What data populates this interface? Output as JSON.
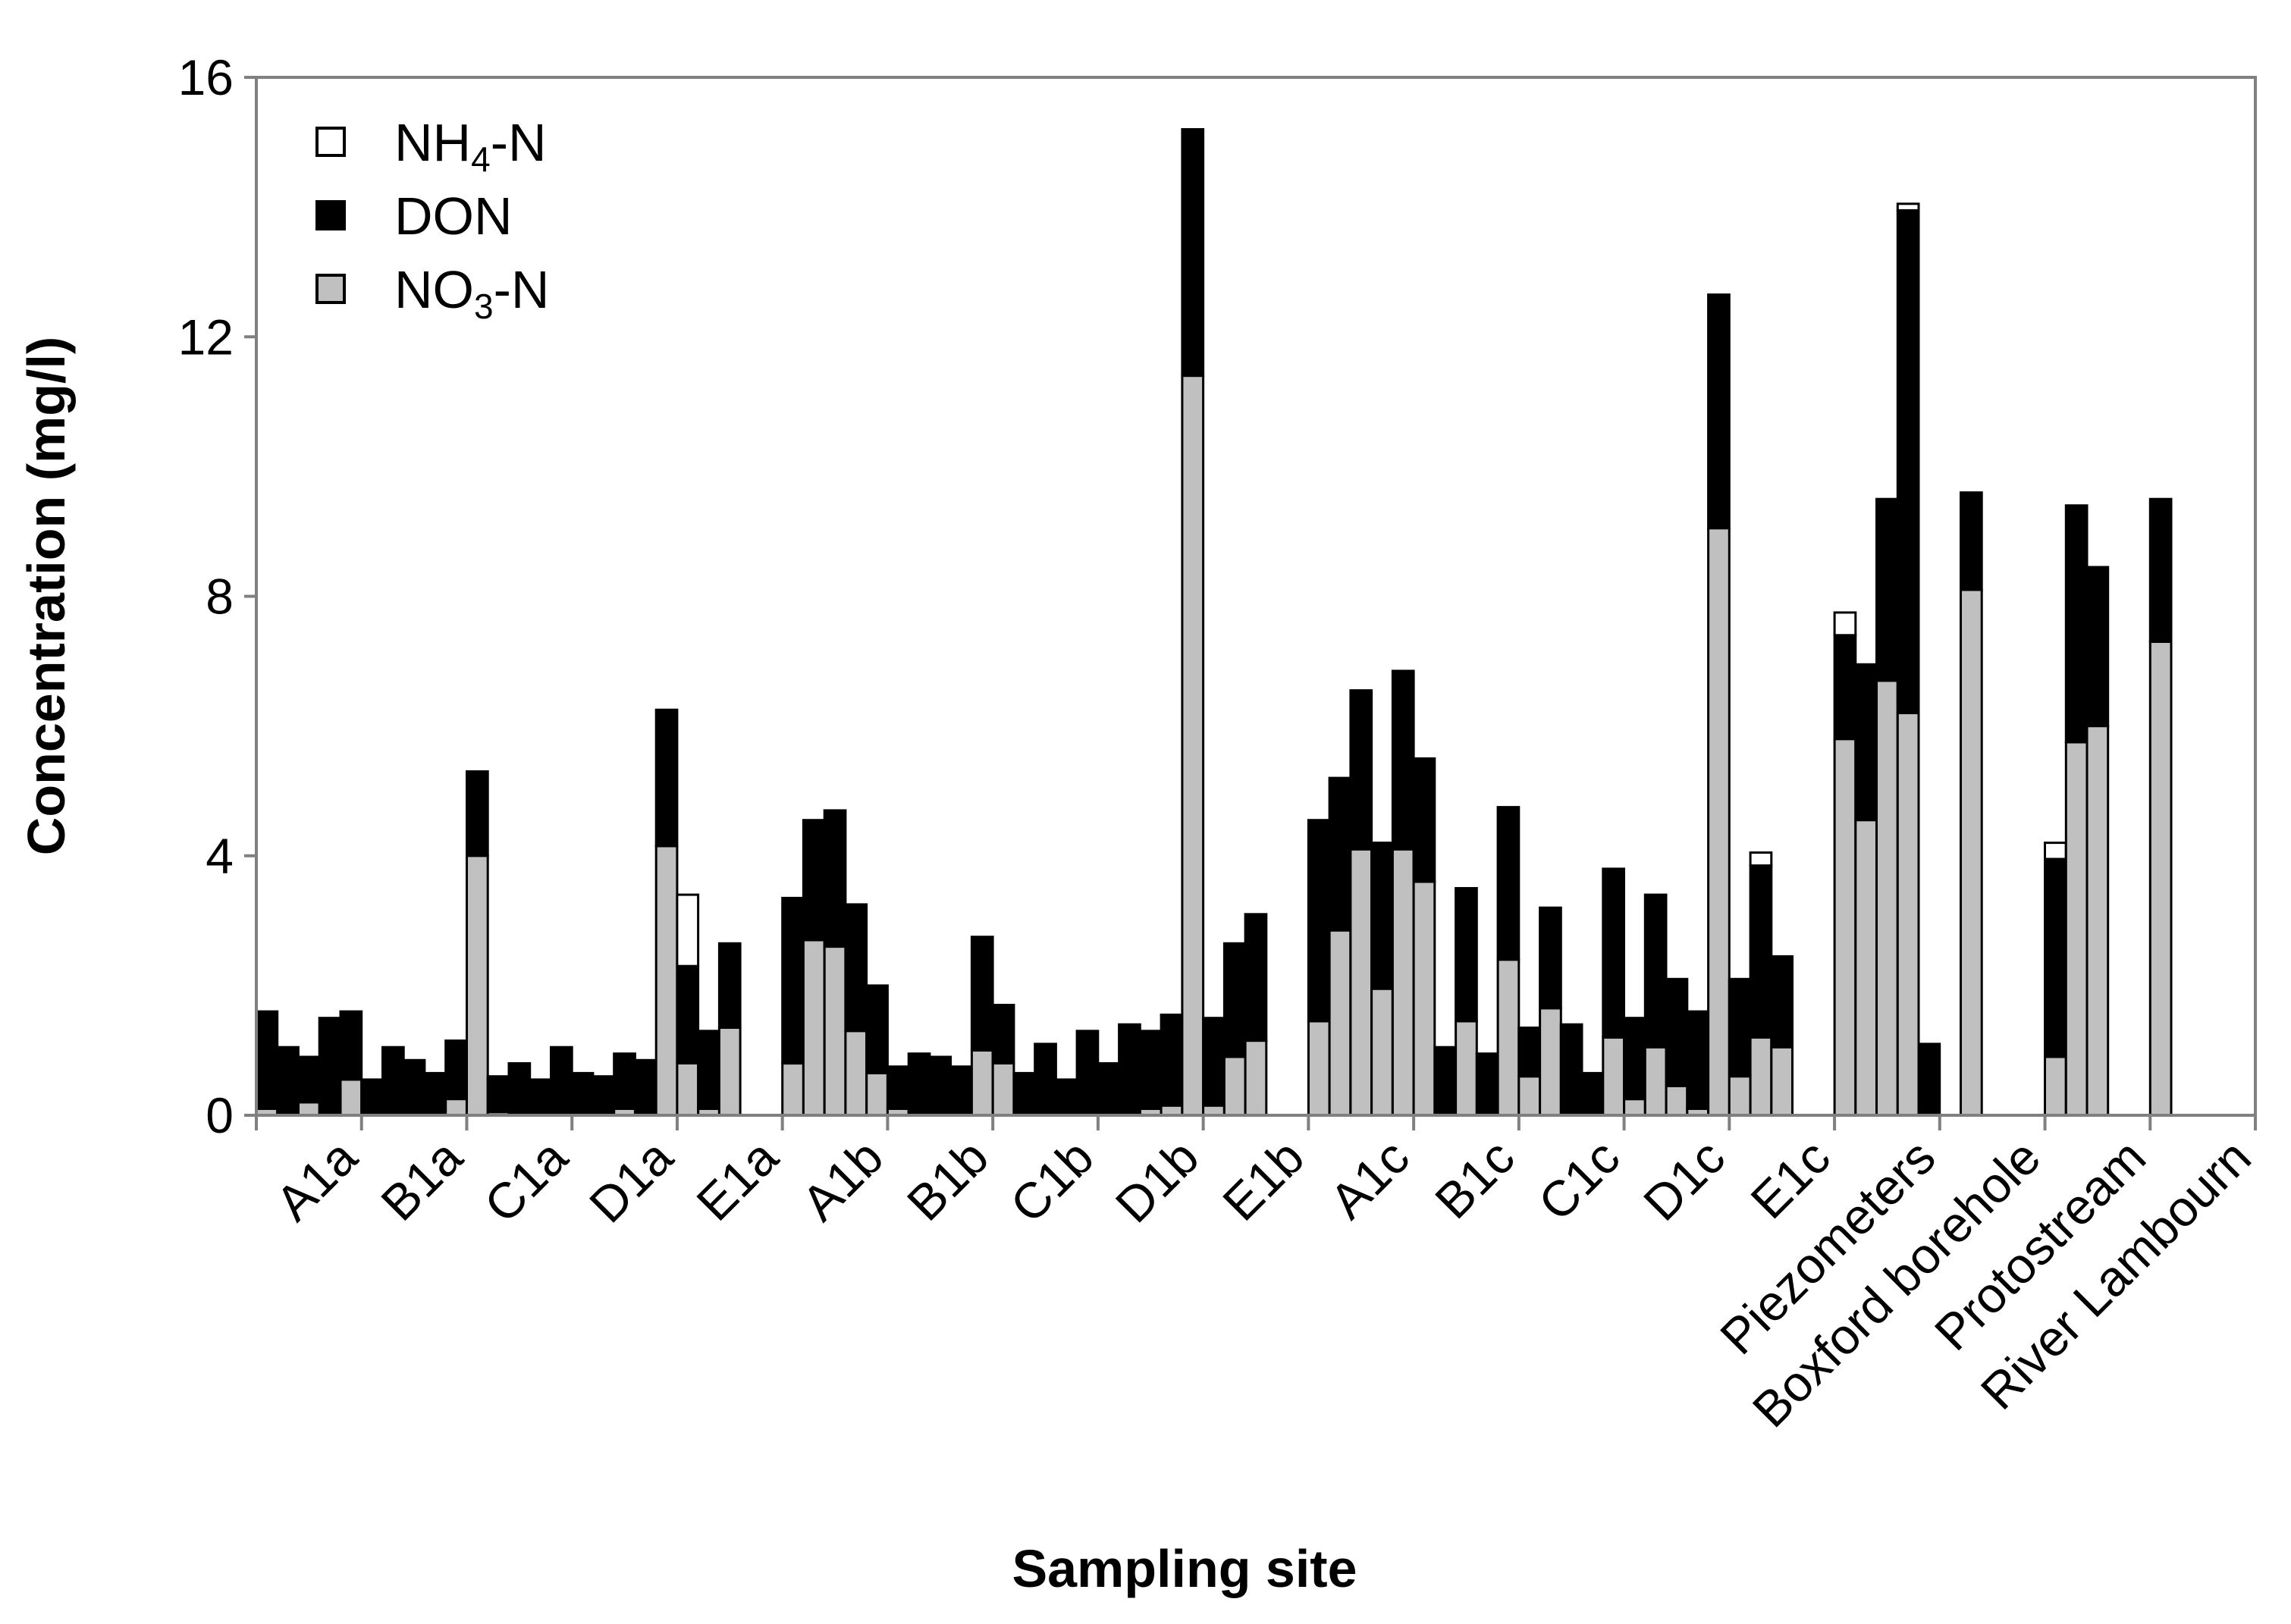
{
  "chart_data": {
    "type": "bar",
    "stacked": true,
    "xlabel": "Sampling site",
    "ylabel": "Concentration (mg/l)",
    "ylim": [
      0,
      16
    ],
    "yticks": [
      "0",
      "4",
      "8",
      "12",
      "16"
    ],
    "grid": false,
    "legend_position": "top-left",
    "legend": [
      {
        "label": "NH",
        "sub": "4",
        "tail": "-N",
        "color": "#ffffff"
      },
      {
        "label": "DON",
        "sub": "",
        "tail": "",
        "color": "#000000"
      },
      {
        "label": "NO",
        "sub": "3",
        "tail": "-N",
        "color": "#c0c0c0"
      }
    ],
    "colors": {
      "NH4-N": "#ffffff",
      "DON": "#000000",
      "NO3-N": "#c0c0c0"
    },
    "group_labels": [
      "A1a",
      "B1a",
      "C1a",
      "D1a",
      "E1a",
      "A1b",
      "B1b",
      "C1b",
      "D1b",
      "E1b",
      "A1c",
      "B1c",
      "C1c",
      "D1c",
      "E1c",
      "Piezometers",
      "Boxford borehole",
      "Protostream",
      "River Lambourn"
    ],
    "group_sizes": [
      5,
      5,
      5,
      5,
      5,
      5,
      5,
      5,
      5,
      5,
      5,
      5,
      5,
      5,
      5,
      5,
      2,
      3,
      1
    ],
    "series_names": [
      "NO3-N",
      "DON",
      "NH4-N"
    ],
    "bars": [
      [
        0.1,
        1.5,
        0.0
      ],
      [
        0.0,
        1.05,
        0.0
      ],
      [
        0.2,
        0.7,
        0.0
      ],
      [
        0.0,
        1.5,
        0.0
      ],
      [
        0.55,
        1.05,
        0.0
      ],
      [
        0.0,
        0.55,
        0.0
      ],
      [
        0.0,
        1.05,
        0.0
      ],
      [
        0.0,
        0.85,
        0.0
      ],
      [
        0.0,
        0.65,
        0.0
      ],
      [
        0.25,
        0.9,
        0.0
      ],
      [
        4.0,
        1.3,
        0.0
      ],
      [
        0.05,
        0.55,
        0.0
      ],
      [
        0.0,
        0.8,
        0.0
      ],
      [
        0.0,
        0.55,
        0.0
      ],
      [
        0.0,
        1.05,
        0.0
      ],
      [
        0.0,
        0.65,
        0.0
      ],
      [
        0.0,
        0.6,
        0.0
      ],
      [
        0.1,
        0.85,
        0.0
      ],
      [
        0.0,
        0.85,
        0.0
      ],
      [
        4.15,
        2.1,
        0.0
      ],
      [
        0.8,
        1.5,
        1.1
      ],
      [
        0.1,
        1.2,
        0.0
      ],
      [
        1.35,
        1.3,
        0.0
      ],
      [
        0.0,
        0.0,
        0.0
      ],
      [
        0.0,
        0.0,
        0.0
      ],
      [
        0.8,
        2.55,
        0.0
      ],
      [
        2.7,
        1.85,
        0.0
      ],
      [
        2.6,
        2.1,
        0.0
      ],
      [
        1.3,
        1.95,
        0.0
      ],
      [
        0.65,
        1.35,
        0.0
      ],
      [
        0.1,
        0.65,
        0.0
      ],
      [
        0.0,
        0.95,
        0.0
      ],
      [
        0.0,
        0.9,
        0.0
      ],
      [
        0.0,
        0.75,
        0.0
      ],
      [
        1.0,
        1.75,
        0.0
      ],
      [
        0.8,
        0.9,
        0.0
      ],
      [
        0.0,
        0.65,
        0.0
      ],
      [
        0.0,
        1.1,
        0.0
      ],
      [
        0.0,
        0.55,
        0.0
      ],
      [
        0.0,
        1.3,
        0.0
      ],
      [
        0.0,
        0.8,
        0.0
      ],
      [
        0.0,
        1.4,
        0.0
      ],
      [
        0.1,
        1.2,
        0.0
      ],
      [
        0.15,
        1.4,
        0.0
      ],
      [
        11.4,
        3.8,
        0.0
      ],
      [
        0.15,
        1.35,
        0.0
      ],
      [
        0.9,
        1.75,
        0.0
      ],
      [
        1.15,
        1.95,
        0.0
      ],
      [
        0.0,
        0.0,
        0.0
      ],
      [
        0.0,
        0.0,
        0.0
      ],
      [
        1.45,
        3.1,
        0.0
      ],
      [
        2.85,
        2.35,
        0.0
      ],
      [
        4.1,
        2.45,
        0.0
      ],
      [
        1.95,
        2.25,
        0.0
      ],
      [
        4.1,
        2.75,
        0.0
      ],
      [
        3.6,
        1.9,
        0.0
      ],
      [
        0.0,
        1.05,
        0.0
      ],
      [
        1.45,
        2.05,
        0.0
      ],
      [
        0.0,
        0.95,
        0.0
      ],
      [
        2.4,
        2.35,
        0.0
      ],
      [
        0.6,
        0.75,
        0.0
      ],
      [
        1.65,
        1.55,
        0.0
      ],
      [
        0.0,
        1.4,
        0.0
      ],
      [
        0.0,
        0.65,
        0.0
      ],
      [
        1.2,
        2.6,
        0.0
      ],
      [
        0.25,
        1.25,
        0.0
      ],
      [
        1.05,
        2.35,
        0.0
      ],
      [
        0.45,
        1.65,
        0.0
      ],
      [
        0.1,
        1.5,
        0.0
      ],
      [
        9.05,
        3.6,
        0.0
      ],
      [
        0.6,
        1.5,
        0.0
      ],
      [
        1.2,
        2.65,
        0.2
      ],
      [
        1.05,
        1.4,
        0.0
      ],
      [
        0.0,
        0.0,
        0.0
      ],
      [
        0.0,
        0.0,
        0.0
      ],
      [
        5.8,
        1.6,
        0.35
      ],
      [
        4.55,
        2.4,
        0.0
      ],
      [
        6.7,
        2.8,
        0.0
      ],
      [
        6.2,
        7.75,
        0.1
      ],
      [
        0.0,
        1.1,
        0.0
      ],
      [
        0.0,
        0.0,
        0.0
      ],
      [
        8.1,
        1.5,
        0.0
      ],
      [
        0.9,
        3.05,
        0.25
      ],
      [
        5.75,
        3.65,
        0.0
      ],
      [
        6.0,
        2.45,
        0.0
      ],
      [
        7.3,
        2.2,
        0.0
      ]
    ]
  }
}
